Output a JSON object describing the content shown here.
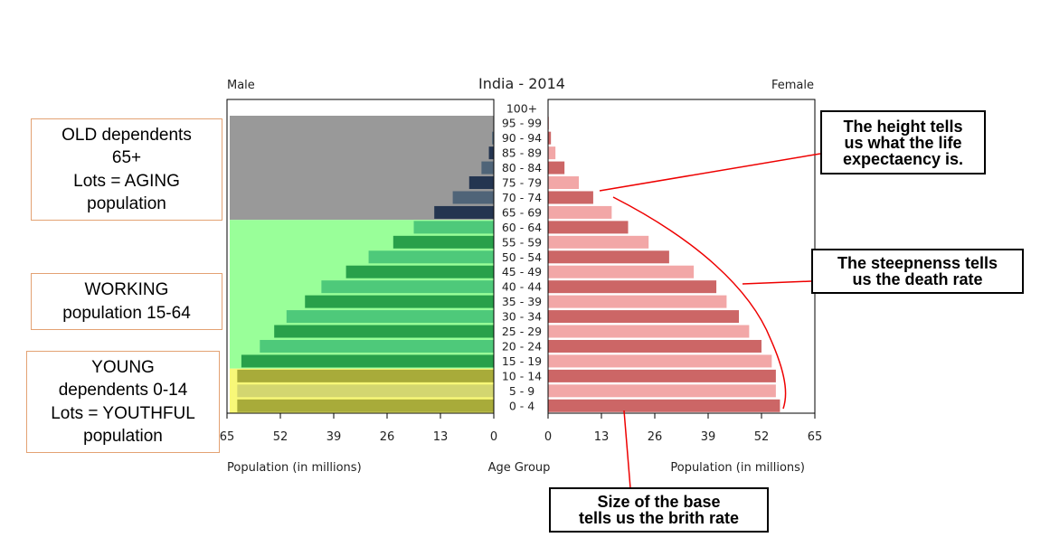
{
  "chart_data": {
    "type": "population_pyramid",
    "title": "India - 2014",
    "left_label": "Male",
    "right_label": "Female",
    "xlabel_left": "Population (in millions)",
    "xlabel_center": "Age Group",
    "xlabel_right": "Population (in millions)",
    "xlim": [
      0,
      65
    ],
    "left_ticks": [
      "65",
      "52",
      "39",
      "26",
      "13",
      "0"
    ],
    "right_ticks": [
      "0",
      "13",
      "26",
      "39",
      "52",
      "65"
    ],
    "age_groups": [
      "0 - 4",
      "5 - 9",
      "10 - 14",
      "15 - 19",
      "20 - 24",
      "25 - 29",
      "30 - 34",
      "35 - 39",
      "40 - 44",
      "45 - 49",
      "50 - 54",
      "55 - 59",
      "60 - 64",
      "65 - 69",
      "70 - 74",
      "75 - 79",
      "80 - 84",
      "85 - 89",
      "90 - 94",
      "95 - 99",
      "100+"
    ],
    "series": [
      {
        "name": "Male",
        "values": [
          62.5,
          62.5,
          62.5,
          61.5,
          57,
          53.5,
          50.5,
          46,
          42,
          36,
          30.5,
          24.5,
          19.5,
          14.5,
          10,
          6,
          3,
          1.2,
          0.4,
          0.1,
          0.05
        ]
      },
      {
        "name": "Female",
        "values": [
          56.5,
          55.5,
          55.5,
          54.5,
          52,
          49,
          46.5,
          43.5,
          41,
          35.5,
          29.5,
          24.5,
          19.5,
          15.5,
          11,
          7.5,
          4,
          1.8,
          0.7,
          0.2,
          0.05
        ]
      }
    ],
    "shading": [
      {
        "group": "old",
        "from_age": "65 - 69",
        "to_age": "95 - 99",
        "color": "#999999"
      },
      {
        "group": "working",
        "from_age": "15 - 19",
        "to_age": "60 - 64",
        "color": "#99ff99"
      },
      {
        "group": "young",
        "from_age": "0 - 4",
        "to_age": "10 - 14",
        "color": "#f8f878"
      }
    ],
    "colors": {
      "male_old_dark": "#243550",
      "male_old_light": "#4f6478",
      "male_work_dark": "#28a04a",
      "male_work_light": "#4ec97a",
      "male_young_dark": "#a8ab3a",
      "male_young_light": "#d3d670",
      "female_dark": "#cc6666",
      "female_light": "#f2a7a7"
    }
  },
  "annotations": {
    "old": [
      "OLD dependents",
      "65+",
      "Lots = AGING",
      "population"
    ],
    "working": [
      "WORKING",
      "population 15-64"
    ],
    "young": [
      "YOUNG",
      "dependents 0-14",
      "Lots = YOUTHFUL",
      "population"
    ],
    "height_note": [
      "The height tells",
      "us what the life",
      "expectaency is."
    ],
    "steepness_note": [
      "The steepnenss tells",
      "us the death rate"
    ],
    "base_note": [
      "Size of the base",
      "tells us the brith rate"
    ]
  }
}
